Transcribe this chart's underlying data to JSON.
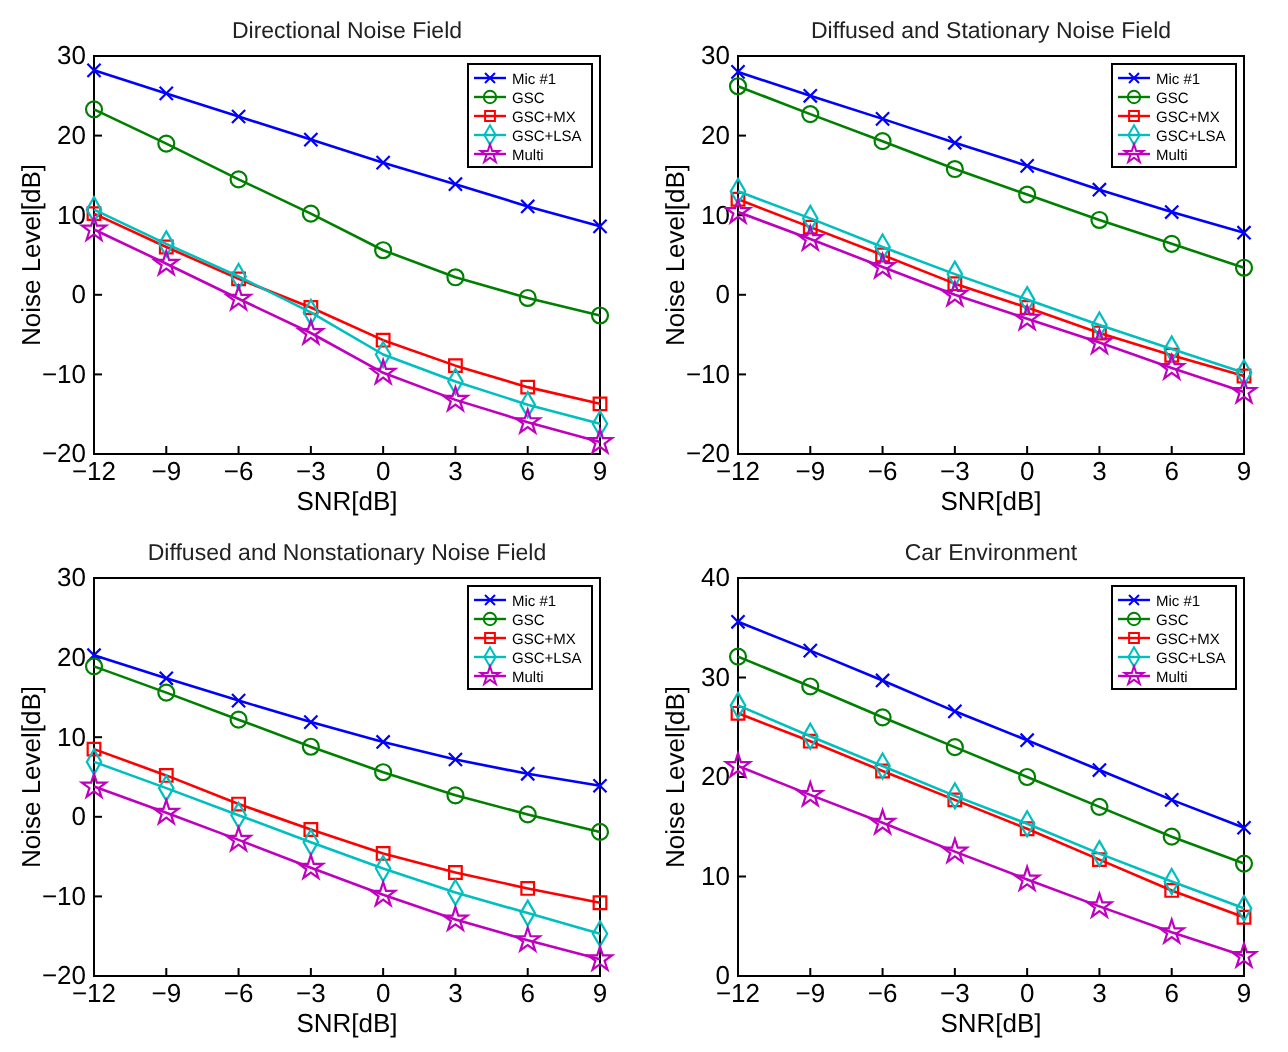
{
  "chart_data": [
    {
      "type": "line",
      "title": "Directional Noise Field",
      "xlabel": "SNR[dB]",
      "ylabel": "Noise Level[dB]",
      "x": [
        -12,
        -9,
        -6,
        -3,
        0,
        3,
        6,
        9
      ],
      "xlim": [
        -12,
        9
      ],
      "xticks": [
        -12,
        -9,
        -6,
        -3,
        0,
        3,
        6,
        9
      ],
      "ylim": [
        -20,
        30
      ],
      "yticks": [
        -20,
        -10,
        0,
        10,
        20,
        30
      ],
      "grid": false,
      "legend": "top right",
      "line_style": "solid",
      "series": [
        {
          "name": "Mic #1",
          "color": "#0000ff",
          "marker": "cross",
          "values": [
            28.2,
            25.3,
            22.4,
            19.5,
            16.6,
            13.9,
            11.1,
            8.6
          ]
        },
        {
          "name": "GSC",
          "color": "#008000",
          "marker": "circle",
          "values": [
            23.3,
            19.0,
            14.5,
            10.2,
            5.6,
            2.2,
            -0.4,
            -2.6
          ]
        },
        {
          "name": "GSC+MX",
          "color": "#ff0000",
          "marker": "square",
          "values": [
            10.2,
            6.0,
            2.0,
            -1.6,
            -5.7,
            -8.9,
            -11.6,
            -13.7
          ]
        },
        {
          "name": "GSC+LSA",
          "color": "#00bfbf",
          "marker": "diamond",
          "values": [
            10.7,
            6.4,
            2.3,
            -2.2,
            -7.5,
            -10.9,
            -13.8,
            -16.2
          ]
        },
        {
          "name": "Multi",
          "color": "#bf00bf",
          "marker": "star",
          "values": [
            8.2,
            3.9,
            -0.5,
            -4.8,
            -9.8,
            -13.2,
            -16.0,
            -18.5
          ]
        }
      ]
    },
    {
      "type": "line",
      "title": "Diffused and Stationary Noise Field",
      "xlabel": "SNR[dB]",
      "ylabel": "Noise Level[dB]",
      "x": [
        -12,
        -9,
        -6,
        -3,
        0,
        3,
        6,
        9
      ],
      "xlim": [
        -12,
        9
      ],
      "xticks": [
        -12,
        -9,
        -6,
        -3,
        0,
        3,
        6,
        9
      ],
      "ylim": [
        -20,
        30
      ],
      "yticks": [
        -20,
        -10,
        0,
        10,
        20,
        30
      ],
      "grid": false,
      "legend": "top right",
      "line_style": "solid",
      "series": [
        {
          "name": "Mic #1",
          "color": "#0000ff",
          "marker": "cross",
          "values": [
            28.0,
            25.0,
            22.1,
            19.1,
            16.2,
            13.2,
            10.4,
            7.8
          ]
        },
        {
          "name": "GSC",
          "color": "#008000",
          "marker": "circle",
          "values": [
            26.2,
            22.7,
            19.3,
            15.8,
            12.6,
            9.4,
            6.4,
            3.4
          ]
        },
        {
          "name": "GSC+MX",
          "color": "#ff0000",
          "marker": "square",
          "values": [
            12.0,
            8.5,
            5.0,
            1.4,
            -1.6,
            -4.8,
            -7.6,
            -10.2
          ]
        },
        {
          "name": "GSC+LSA",
          "color": "#00bfbf",
          "marker": "diamond",
          "values": [
            13.0,
            9.6,
            6.0,
            2.6,
            -0.6,
            -3.8,
            -6.8,
            -9.8
          ]
        },
        {
          "name": "Multi",
          "color": "#bf00bf",
          "marker": "star",
          "values": [
            10.4,
            7.0,
            3.5,
            0.0,
            -3.0,
            -6.0,
            -9.2,
            -12.2
          ]
        }
      ]
    },
    {
      "type": "line",
      "title": "Diffused and Nonstationary Noise Field",
      "xlabel": "SNR[dB]",
      "ylabel": "Noise Level[dB]",
      "x": [
        -12,
        -9,
        -6,
        -3,
        0,
        3,
        6,
        9
      ],
      "xlim": [
        -12,
        9
      ],
      "xticks": [
        -12,
        -9,
        -6,
        -3,
        0,
        3,
        6,
        9
      ],
      "ylim": [
        -20,
        30
      ],
      "yticks": [
        -20,
        -10,
        0,
        10,
        20,
        30
      ],
      "grid": false,
      "legend": "top right",
      "line_style": "solid",
      "series": [
        {
          "name": "Mic #1",
          "color": "#0000ff",
          "marker": "cross",
          "values": [
            20.3,
            17.4,
            14.6,
            11.9,
            9.4,
            7.2,
            5.4,
            3.9
          ]
        },
        {
          "name": "GSC",
          "color": "#008000",
          "marker": "circle",
          "values": [
            18.9,
            15.6,
            12.2,
            8.8,
            5.6,
            2.7,
            0.3,
            -1.9
          ]
        },
        {
          "name": "GSC+MX",
          "color": "#ff0000",
          "marker": "square",
          "values": [
            8.5,
            5.2,
            1.6,
            -1.6,
            -4.6,
            -7.0,
            -9.0,
            -10.8
          ]
        },
        {
          "name": "GSC+LSA",
          "color": "#00bfbf",
          "marker": "diamond",
          "values": [
            6.9,
            3.6,
            0.2,
            -3.2,
            -6.5,
            -9.5,
            -12.1,
            -14.7
          ]
        },
        {
          "name": "Multi",
          "color": "#bf00bf",
          "marker": "star",
          "values": [
            3.8,
            0.5,
            -2.9,
            -6.4,
            -9.8,
            -12.9,
            -15.5,
            -17.9
          ]
        }
      ]
    },
    {
      "type": "line",
      "title": "Car Environment",
      "xlabel": "SNR[dB]",
      "ylabel": "Noise Level[dB]",
      "x": [
        -12,
        -9,
        -6,
        -3,
        0,
        3,
        6,
        9
      ],
      "xlim": [
        -12,
        9
      ],
      "xticks": [
        -12,
        -9,
        -6,
        -3,
        0,
        3,
        6,
        9
      ],
      "ylim": [
        0,
        40
      ],
      "yticks": [
        0,
        10,
        20,
        30,
        40
      ],
      "grid": false,
      "legend": "top right",
      "line_style": "solid",
      "series": [
        {
          "name": "Mic #1",
          "color": "#0000ff",
          "marker": "cross",
          "values": [
            35.6,
            32.7,
            29.7,
            26.6,
            23.7,
            20.7,
            17.7,
            14.9
          ]
        },
        {
          "name": "GSC",
          "color": "#008000",
          "marker": "circle",
          "values": [
            32.1,
            29.1,
            26.0,
            23.0,
            20.0,
            17.0,
            14.0,
            11.3
          ]
        },
        {
          "name": "GSC+MX",
          "color": "#ff0000",
          "marker": "square",
          "values": [
            26.4,
            23.6,
            20.6,
            17.7,
            14.8,
            11.7,
            8.6,
            5.9
          ]
        },
        {
          "name": "GSC+LSA",
          "color": "#00bfbf",
          "marker": "diamond",
          "values": [
            27.2,
            24.1,
            21.1,
            18.1,
            15.3,
            12.3,
            9.5,
            6.8
          ]
        },
        {
          "name": "Multi",
          "color": "#bf00bf",
          "marker": "star",
          "values": [
            21.1,
            18.2,
            15.4,
            12.5,
            9.7,
            7.0,
            4.4,
            2.0
          ]
        }
      ]
    }
  ]
}
